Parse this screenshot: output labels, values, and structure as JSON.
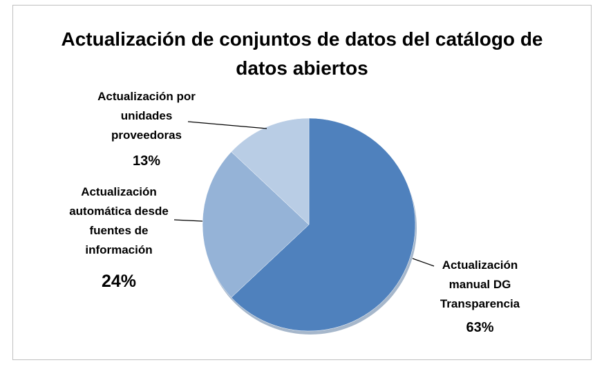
{
  "chart_data": {
    "type": "pie",
    "title": "Actualización de conjuntos de datos del catálogo de datos abiertos",
    "categories": [
      "Actualización manual DG Transparencia",
      "Actualización automática desde fuentes de información",
      "Actualización por unidades proveedoras"
    ],
    "values": [
      63,
      24,
      13
    ],
    "value_labels": [
      "63%",
      "24%",
      "13%"
    ],
    "colors": [
      "#4f81bd",
      "#95b3d7",
      "#b9cde5"
    ]
  }
}
